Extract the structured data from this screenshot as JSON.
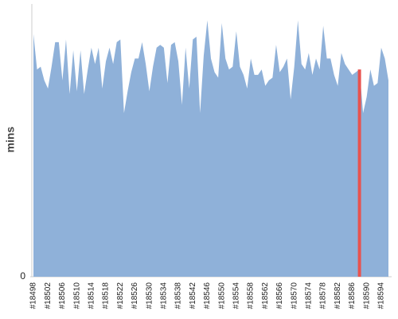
{
  "chart_data": {
    "type": "area",
    "y_label": "mins",
    "categories": [
      "#18498",
      null,
      null,
      null,
      "#18502",
      null,
      null,
      null,
      "#18506",
      null,
      null,
      null,
      "#18510",
      null,
      null,
      null,
      "#18514",
      null,
      null,
      null,
      "#18518",
      null,
      null,
      null,
      "#18522",
      null,
      null,
      null,
      "#18526",
      null,
      null,
      null,
      "#18530",
      null,
      null,
      null,
      "#18534",
      null,
      null,
      null,
      "#18538",
      null,
      null,
      null,
      "#18542",
      null,
      null,
      null,
      "#18546",
      null,
      null,
      null,
      "#18550",
      null,
      null,
      null,
      "#18554",
      null,
      null,
      null,
      "#18558",
      null,
      null,
      null,
      "#18562",
      null,
      null,
      null,
      "#18566",
      null,
      null,
      null,
      "#18570",
      null,
      null,
      null,
      "#18574",
      null,
      null,
      null,
      "#18578",
      null,
      null,
      null,
      "#18582",
      null,
      null,
      null,
      "#18586",
      null,
      null,
      null,
      "#18590",
      null,
      null,
      null,
      "#18594",
      null,
      null
    ],
    "values": [
      89,
      76,
      77,
      72,
      69,
      77,
      86,
      86,
      72,
      87,
      67,
      83,
      68,
      83,
      67,
      76,
      84,
      78,
      84,
      69,
      79,
      84,
      78,
      86,
      87,
      60,
      68,
      75,
      80,
      80,
      86,
      78,
      68,
      77,
      84,
      85,
      84,
      71,
      85,
      86,
      79,
      63,
      84,
      69,
      87,
      88,
      60,
      81,
      94,
      80,
      75,
      73,
      93,
      80,
      76,
      77,
      90,
      77,
      74,
      69,
      80,
      74,
      74,
      76,
      70,
      72,
      73,
      85,
      75,
      77,
      80,
      65,
      77,
      94,
      78,
      76,
      82,
      74,
      80,
      76,
      92,
      80,
      80,
      74,
      70,
      82,
      78,
      76,
      74,
      75,
      76,
      60,
      66,
      76,
      70,
      71,
      84,
      80,
      72
    ],
    "color": "#8fb1d9",
    "highlight_index": 90,
    "highlight_color": "#e8534f",
    "ylim": [
      0,
      100
    ],
    "yticks": [
      0
    ]
  }
}
